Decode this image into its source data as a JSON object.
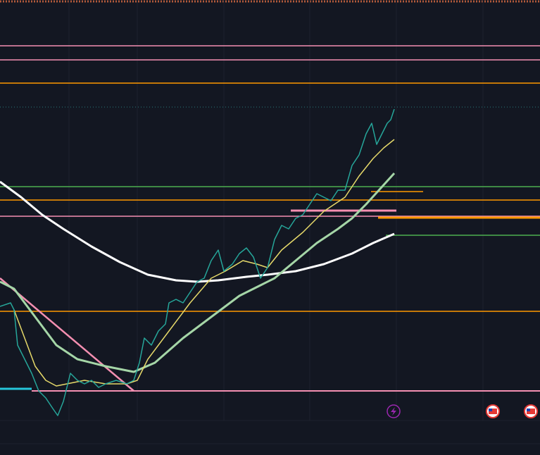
{
  "chart_data": {
    "type": "line",
    "xlim": [
      0,
      767
    ],
    "ylim": [
      0,
      646
    ],
    "xticks": [
      98,
      195,
      318,
      440,
      563,
      686
    ],
    "grid": true,
    "series": [
      {
        "color": "#f48fb1",
        "width": 1.5,
        "x": [
          0,
          767
        ],
        "values": [
          581,
          581
        ]
      },
      {
        "color": "#f48fb1",
        "width": 1.5,
        "x": [
          0,
          767
        ],
        "values": [
          561,
          561
        ]
      },
      {
        "color": "#ff9800",
        "width": 1.5,
        "x": [
          0,
          767
        ],
        "values": [
          528,
          528
        ]
      },
      {
        "color": "#2a7a7a",
        "width": 1,
        "style": "dotted",
        "x": [
          0,
          767
        ],
        "values": [
          494,
          494
        ]
      },
      {
        "color": "#4caf50",
        "width": 1.5,
        "x": [
          0,
          767
        ],
        "values": [
          381,
          381
        ]
      },
      {
        "color": "#ff9800",
        "width": 1.5,
        "x": [
          0,
          767
        ],
        "values": [
          362,
          362
        ]
      },
      {
        "color": "#f48fb1",
        "width": 1.5,
        "x": [
          0,
          767
        ],
        "values": [
          339,
          339
        ]
      },
      {
        "color": "#ff9800",
        "width": 1.5,
        "x": [
          0,
          767
        ],
        "values": [
          204,
          204
        ]
      },
      {
        "color": "#f48fb1",
        "width": 2,
        "x": [
          45,
          767
        ],
        "values": [
          91,
          91
        ]
      },
      {
        "color": "#26c6da",
        "width": 3,
        "x": [
          0,
          45
        ],
        "values": [
          94,
          94
        ]
      },
      {
        "color": "#ff9800",
        "width": 1.5,
        "x": [
          527,
          601
        ],
        "values": [
          374,
          374
        ]
      },
      {
        "color": "#f48fb1",
        "width": 3,
        "x": [
          413,
          563
        ],
        "values": [
          347,
          347
        ]
      },
      {
        "color": "#ff9800",
        "width": 3,
        "x": [
          537,
          767
        ],
        "values": [
          337,
          337
        ]
      },
      {
        "color": "#4caf50",
        "width": 1.5,
        "x": [
          548,
          767
        ],
        "values": [
          312,
          312
        ]
      },
      {
        "color": "#f48fb1",
        "width": 2.5,
        "x": [
          0,
          190
        ],
        "values": [
          251,
          91
        ]
      },
      {
        "color": "#ffffff",
        "width": 3,
        "x": [
          0,
          30,
          60,
          90,
          130,
          170,
          210,
          250,
          280,
          310,
          350,
          380,
          420,
          460,
          500,
          530,
          560
        ],
        "values": [
          388,
          366,
          341,
          321,
          296,
          274,
          256,
          248,
          246,
          248,
          253,
          256,
          261,
          271,
          286,
          301,
          314
        ]
      },
      {
        "color": "#a5d6a7",
        "width": 3,
        "x": [
          0,
          20,
          50,
          80,
          110,
          150,
          190,
          220,
          260,
          300,
          340,
          370,
          390,
          420,
          450,
          480,
          500,
          520,
          540,
          560
        ],
        "values": [
          246,
          236,
          196,
          156,
          136,
          126,
          118,
          131,
          166,
          196,
          226,
          241,
          251,
          276,
          301,
          321,
          336,
          356,
          378,
          400
        ]
      },
      {
        "color": "#e6d96a",
        "width": 1.5,
        "x": [
          20,
          35,
          50,
          65,
          80,
          95,
          120,
          150,
          180,
          195,
          210,
          240,
          270,
          300,
          320,
          345,
          365,
          380,
          400,
          430,
          460,
          490,
          510,
          530,
          545,
          560
        ],
        "values": [
          206,
          166,
          126,
          106,
          98,
          101,
          106,
          101,
          101,
          106,
          136,
          176,
          216,
          251,
          261,
          276,
          271,
          266,
          291,
          316,
          346,
          366,
          396,
          421,
          436,
          448
        ]
      },
      {
        "color": "#26a69a",
        "width": 1.5,
        "x": [
          0,
          15,
          20,
          25,
          35,
          45,
          55,
          65,
          75,
          82,
          90,
          100,
          110,
          120,
          130,
          140,
          150,
          165,
          180,
          190,
          198,
          205,
          215,
          225,
          235,
          240,
          250,
          260,
          270,
          280,
          290,
          300,
          310,
          318,
          330,
          340,
          350,
          360,
          370,
          380,
          390,
          400,
          410,
          420,
          430,
          440,
          450,
          460,
          470,
          480,
          490,
          500,
          510,
          520,
          528,
          535,
          540,
          550,
          555,
          560
        ],
        "values": [
          211,
          216,
          206,
          156,
          136,
          116,
          91,
          81,
          66,
          56,
          76,
          116,
          106,
          101,
          106,
          96,
          101,
          106,
          101,
          106,
          131,
          166,
          156,
          176,
          186,
          216,
          221,
          216,
          231,
          246,
          251,
          276,
          291,
          261,
          271,
          286,
          294,
          281,
          251,
          266,
          306,
          326,
          321,
          336,
          341,
          356,
          371,
          366,
          361,
          376,
          376,
          411,
          426,
          456,
          471,
          441,
          451,
          471,
          476,
          491
        ]
      }
    ]
  }
}
